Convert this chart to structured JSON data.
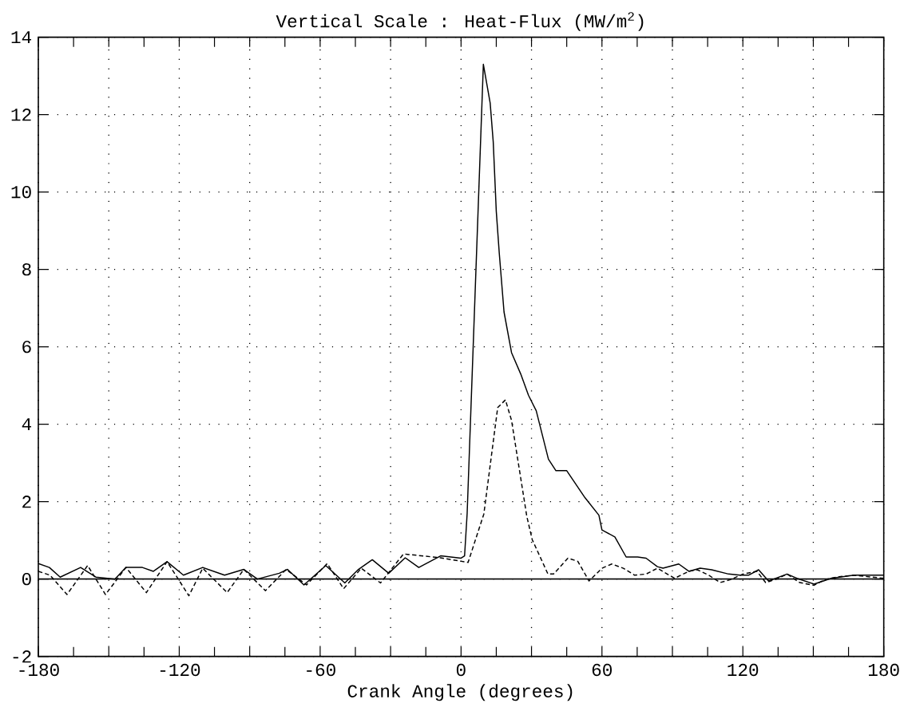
{
  "chart_data": {
    "type": "line",
    "title": "Vertical Scale : Heat-Flux (MW/m$^{2}$)",
    "xlabel": "Crank Angle (degrees)",
    "xlim": [
      -180,
      180
    ],
    "ylim": [
      -2,
      14
    ],
    "xticks": [
      -180,
      {
        "value": -150,
        "label": null
      },
      -120,
      {
        "value": -90,
        "label": null
      },
      -60,
      {
        "value": -30,
        "label": null
      },
      0,
      {
        "value": 30,
        "label": null
      },
      60,
      {
        "value": 90,
        "label": null
      },
      120,
      {
        "value": 150,
        "label": null
      },
      180
    ],
    "yticks": [
      -2,
      0,
      2,
      4,
      6,
      8,
      10,
      12,
      14
    ],
    "grid": true,
    "marker": "none",
    "ref_lines": [
      {
        "axis": "y",
        "value": 0,
        "color": "#000000",
        "line_style": "solid"
      }
    ],
    "series": [
      {
        "color": "#000000",
        "line_style": "solid",
        "x": [
          -180,
          -175.3,
          -170.7,
          -162,
          -155.5,
          -147.4,
          -142.7,
          -135.7,
          -131,
          -125.2,
          -118.2,
          -110,
          -100.7,
          -92.5,
          -86.7,
          -77.4,
          -73.9,
          -66.9,
          -57.6,
          -49.5,
          -43.7,
          -37.8,
          -30.8,
          -23.8,
          -18,
          -8.7,
          0,
          1.5,
          2.6,
          9.5,
          12.4,
          13.7,
          15,
          16.3,
          18.3,
          21.5,
          25.4,
          28.7,
          32,
          37.2,
          40.4,
          45,
          52.8,
          58.7,
          60,
          65.5,
          70.3,
          75.2,
          78.8,
          83.6,
          86,
          92.7,
          97,
          101.8,
          106.7,
          113.9,
          118.8,
          122.4,
          126.7,
          130.9,
          138.8,
          143,
          150.3,
          157.6,
          167.3,
          180
        ],
        "values": [
          0.4,
          0.3,
          0.05,
          0.3,
          0.05,
          0,
          0.3,
          0.3,
          0.2,
          0.45,
          0.1,
          0.3,
          0.1,
          0.25,
          0,
          0.15,
          0.25,
          -0.15,
          0.35,
          -0.1,
          0.25,
          0.5,
          0.15,
          0.55,
          0.3,
          0.6,
          0.54,
          0.6,
          1.7,
          13.3,
          12.3,
          11.3,
          9.5,
          8.4,
          6.9,
          5.85,
          5.3,
          4.75,
          4.35,
          3.1,
          2.8,
          2.8,
          2.1,
          1.65,
          1.27,
          1.09,
          0.57,
          0.57,
          0.54,
          0.32,
          0.28,
          0.39,
          0.2,
          0.28,
          0.24,
          0.13,
          0.1,
          0.1,
          0.24,
          -0.05,
          0.13,
          0.02,
          -0.13,
          0.02,
          0.1,
          0.1
        ]
      },
      {
        "color": "#000000",
        "line_style": "dashed",
        "x": [
          -180,
          -175,
          -167.8,
          -159,
          -151.4,
          -142.7,
          -134,
          -125.2,
          -115.9,
          -110,
          -99.6,
          -92.5,
          -83.3,
          -74.5,
          -65.8,
          -57,
          -50,
          -42.5,
          -34.3,
          -24.5,
          -8.8,
          3,
          9.7,
          15.6,
          18.9,
          21.5,
          28,
          30.3,
          37,
          39.4,
          45.5,
          49.7,
          54.5,
          60,
          64.2,
          69.1,
          73.9,
          78.8,
          83.6,
          90.9,
          97,
          100.6,
          105.5,
          110.3,
          115,
          120,
          126,
          129.7,
          134.5,
          138.8,
          144.2,
          150.3,
          155,
          161,
          167.3,
          180
        ],
        "values": [
          0.2,
          0.1,
          -0.4,
          0.35,
          -0.4,
          0.3,
          -0.35,
          0.45,
          -0.43,
          0.28,
          -0.35,
          0.25,
          -0.3,
          0.25,
          -0.15,
          0.4,
          -0.25,
          0.28,
          -0.1,
          0.65,
          0.55,
          0.43,
          1.68,
          4.43,
          4.63,
          4.1,
          1.62,
          1.02,
          0.13,
          0.13,
          0.54,
          0.46,
          -0.05,
          0.28,
          0.39,
          0.28,
          0.1,
          0.13,
          0.28,
          0.02,
          0.2,
          0.24,
          0.1,
          -0.09,
          -0.01,
          0.13,
          0.2,
          -0.09,
          0,
          0.13,
          -0.09,
          -0.16,
          -0.01,
          0.06,
          0.1,
          0.02
        ]
      }
    ]
  }
}
